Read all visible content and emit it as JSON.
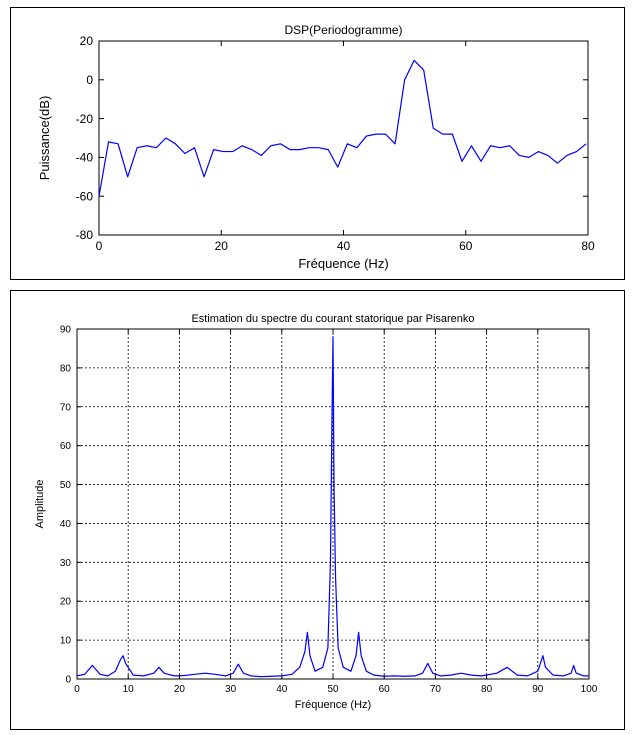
{
  "charts": [
    {
      "title": "DSP(Periodogramme)",
      "xlabel": "Fréquence (Hz)",
      "ylabel": "Puissance(dB)",
      "line_color": "#0000ff"
    },
    {
      "title": "Estimation du spectre du courant statorique par Pisarenko",
      "xlabel": "Fréquence (Hz)",
      "ylabel": "Amplitude",
      "line_color": "#0000ff"
    }
  ],
  "chart_data": [
    {
      "type": "line",
      "title": "DSP(Periodogramme)",
      "xlabel": "Fréquence (Hz)",
      "ylabel": "Puissance(dB)",
      "xlim": [
        0,
        80
      ],
      "ylim": [
        -80,
        20
      ],
      "xticks": [
        0,
        20,
        40,
        60,
        80
      ],
      "yticks": [
        -80,
        -60,
        -40,
        -20,
        0,
        20
      ],
      "grid": false,
      "series": [
        {
          "x": [
            0,
            1.56,
            3.12,
            4.69,
            6.25,
            7.81,
            9.38,
            10.94,
            12.5,
            14.06,
            15.62,
            17.19,
            18.75,
            20.31,
            21.88,
            23.44,
            25,
            26.56,
            28.12,
            29.69,
            31.25,
            32.81,
            34.38,
            35.94,
            37.5,
            39.06,
            40.62,
            42.19,
            43.75,
            45.31,
            46.88,
            48.44,
            50,
            51.56,
            53.12,
            54.69,
            56.25,
            57.81,
            59.38,
            60.94,
            62.5,
            64.06,
            65.62,
            67.19,
            68.75,
            70.31,
            71.88,
            73.44,
            75,
            76.56,
            78.12,
            79.69
          ],
          "y": [
            -60,
            -32,
            -33,
            -50,
            -35,
            -34,
            -35,
            -30,
            -33,
            -38,
            -35,
            -50,
            -36,
            -37,
            -37,
            -34,
            -36,
            -39,
            -34,
            -33,
            -36,
            -36,
            -35,
            -35,
            -36,
            -45,
            -33,
            -35,
            -29,
            -28,
            -28,
            -33,
            0,
            10,
            5,
            -25,
            -28,
            -28,
            -42,
            -34,
            -42,
            -34,
            -35,
            -34,
            -39,
            -40,
            -37,
            -39,
            -43,
            -39,
            -37,
            -33
          ]
        }
      ]
    },
    {
      "type": "line",
      "title": "Estimation du spectre du courant statorique par Pisarenko",
      "xlabel": "Fréquence (Hz)",
      "ylabel": "Amplitude",
      "xlim": [
        0,
        100
      ],
      "ylim": [
        0,
        90
      ],
      "xticks": [
        0,
        10,
        20,
        30,
        40,
        50,
        60,
        70,
        80,
        90,
        100
      ],
      "yticks": [
        0,
        10,
        20,
        30,
        40,
        50,
        60,
        70,
        80,
        90
      ],
      "grid": true,
      "series": [
        {
          "x": [
            0,
            1.5,
            3,
            4.5,
            6,
            7.5,
            8.5,
            9,
            9.5,
            11,
            13,
            15,
            16,
            17,
            19,
            21,
            23,
            25,
            27,
            29,
            30.5,
            31.5,
            32.5,
            34,
            36,
            38,
            40,
            42,
            43.5,
            44.5,
            45,
            45.5,
            46.5,
            48,
            49,
            49.5,
            49.8,
            50,
            50.2,
            50.5,
            51,
            52,
            53.5,
            54.5,
            55,
            55.5,
            56.5,
            58,
            60,
            62,
            64,
            66,
            67.5,
            68.5,
            69.5,
            71,
            73,
            75,
            77,
            79,
            82,
            84,
            86,
            88,
            90,
            90.5,
            91,
            91.5,
            93,
            95,
            96.5,
            97,
            97.5,
            99,
            100
          ],
          "y": [
            0.8,
            1.2,
            3.5,
            1.2,
            0.8,
            2,
            5,
            6,
            4,
            1,
            0.8,
            1.5,
            3,
            1.5,
            0.8,
            0.9,
            1.2,
            1.5,
            1.2,
            0.8,
            1.5,
            3.8,
            1.5,
            0.8,
            0.6,
            0.7,
            0.8,
            1.2,
            3,
            7,
            12,
            6,
            2,
            3,
            8,
            30,
            67,
            88,
            50,
            26,
            8,
            3,
            2,
            6,
            12,
            6,
            2,
            1,
            0.7,
            0.8,
            0.7,
            0.8,
            1.5,
            4,
            1.5,
            0.8,
            1,
            1.5,
            1,
            0.8,
            1.5,
            3,
            1,
            0.8,
            2,
            4,
            6,
            3,
            1,
            0.8,
            1.5,
            3.5,
            1.5,
            0.8,
            0.8
          ]
        }
      ]
    }
  ]
}
